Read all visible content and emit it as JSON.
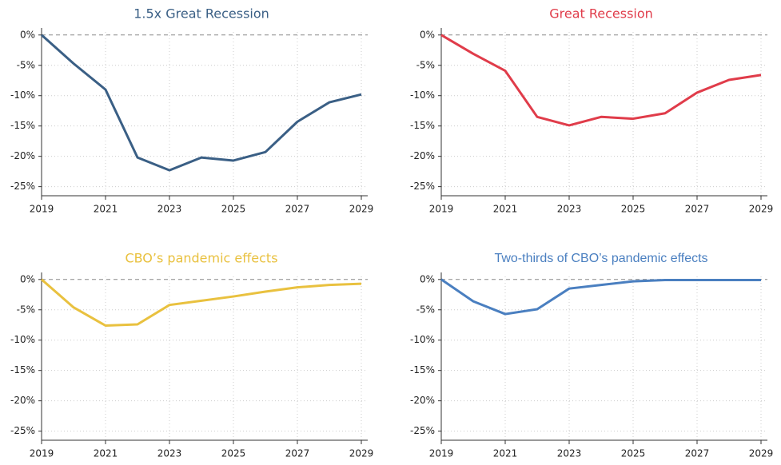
{
  "chart_data": [
    {
      "type": "line",
      "title": "1.5x Great Recession",
      "color": "#3a5f85",
      "x": [
        2019,
        2020,
        2021,
        2022,
        2023,
        2024,
        2025,
        2026,
        2027,
        2028,
        2029
      ],
      "values": [
        0,
        -4.7,
        -9,
        -20.2,
        -22.3,
        -20.2,
        -20.7,
        -19.3,
        -14.3,
        -11.1,
        -9.8
      ],
      "xlim": [
        2019,
        2029
      ],
      "xticks": [
        2019,
        2021,
        2023,
        2025,
        2027,
        2029
      ],
      "ylim": [
        -26.5,
        0.5
      ],
      "yticks": [
        {
          "value": 0,
          "label": "0%"
        },
        {
          "value": -5,
          "label": "-5%"
        },
        {
          "value": -10,
          "label": "-10%"
        },
        {
          "value": -15,
          "label": "-15%"
        },
        {
          "value": -20,
          "label": "-20%"
        },
        {
          "value": -25,
          "label": "-25%"
        }
      ],
      "grid": true
    },
    {
      "type": "line",
      "title": "Great Recession",
      "color": "#e03c4a",
      "x": [
        2019,
        2020,
        2021,
        2022,
        2023,
        2024,
        2025,
        2026,
        2027,
        2028,
        2029
      ],
      "values": [
        0,
        -3.1,
        -5.9,
        -13.5,
        -14.9,
        -13.5,
        -13.8,
        -12.9,
        -9.5,
        -7.4,
        -6.6
      ],
      "xlim": [
        2019,
        2029
      ],
      "xticks": [
        2019,
        2021,
        2023,
        2025,
        2027,
        2029
      ],
      "ylim": [
        -26.5,
        0.5
      ],
      "yticks": [
        {
          "value": 0,
          "label": "0%"
        },
        {
          "value": -5,
          "label": "-5%"
        },
        {
          "value": -10,
          "label": "-10%"
        },
        {
          "value": -15,
          "label": "-15%"
        },
        {
          "value": -20,
          "label": "-20%"
        },
        {
          "value": -25,
          "label": "-25%"
        }
      ],
      "grid": true
    },
    {
      "type": "line",
      "title": "CBO’s pandemic effects",
      "color": "#e9c13f",
      "x": [
        2019,
        2020,
        2021,
        2022,
        2023,
        2024,
        2025,
        2026,
        2027,
        2028,
        2029
      ],
      "values": [
        0,
        -4.6,
        -7.6,
        -7.4,
        -4.2,
        -3.5,
        -2.8,
        -2.0,
        -1.3,
        -0.9,
        -0.7
      ],
      "xlim": [
        2019,
        2029
      ],
      "xticks": [
        2019,
        2021,
        2023,
        2025,
        2027,
        2029
      ],
      "ylim": [
        -26.5,
        0.5
      ],
      "yticks": [
        {
          "value": 0,
          "label": "0%"
        },
        {
          "value": -5,
          "label": "-5%"
        },
        {
          "value": -10,
          "label": "-10%"
        },
        {
          "value": -15,
          "label": "-15%"
        },
        {
          "value": -20,
          "label": "-20%"
        },
        {
          "value": -25,
          "label": "-25%"
        }
      ],
      "grid": true
    },
    {
      "type": "line",
      "title": "Two-thirds of CBO’s pandemic effects",
      "color": "#4a7fc0",
      "x": [
        2019,
        2020,
        2021,
        2022,
        2023,
        2024,
        2025,
        2026,
        2027,
        2028,
        2029
      ],
      "values": [
        0,
        -3.6,
        -5.7,
        -4.9,
        -1.5,
        -0.9,
        -0.3,
        -0.1,
        -0.1,
        -0.1,
        -0.1
      ],
      "xlim": [
        2019,
        2029
      ],
      "xticks": [
        2019,
        2021,
        2023,
        2025,
        2027,
        2029
      ],
      "ylim": [
        -26.5,
        0.5
      ],
      "yticks": [
        {
          "value": 0,
          "label": "0%"
        },
        {
          "value": -5,
          "label": "-5%"
        },
        {
          "value": -10,
          "label": "-10%"
        },
        {
          "value": -15,
          "label": "-15%"
        },
        {
          "value": -20,
          "label": "-20%"
        },
        {
          "value": -25,
          "label": "-25%"
        }
      ],
      "grid": true
    }
  ]
}
